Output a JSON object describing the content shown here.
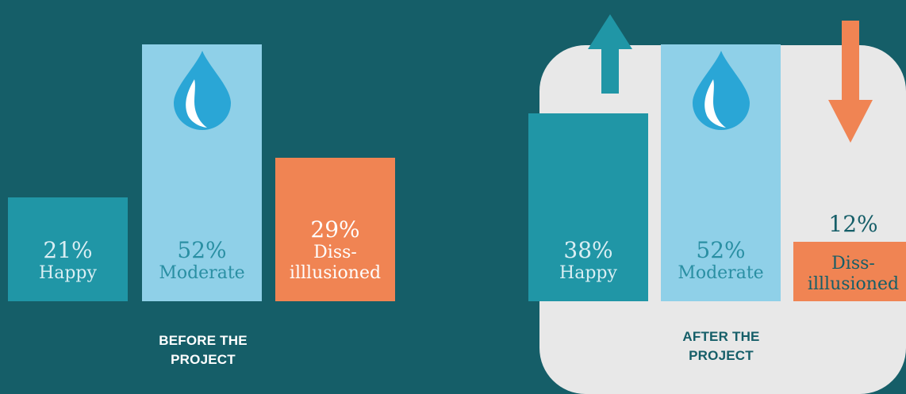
{
  "chart_data": [
    {
      "type": "bar",
      "title": "BEFORE THE\nPROJECT",
      "categories": [
        "Happy",
        "Moderate",
        "Diss-\nilllusioned"
      ],
      "values": [
        21,
        52,
        29
      ],
      "value_labels": [
        "21%",
        "52%",
        "29%"
      ],
      "colors": [
        "#2096a6",
        "#8fd0e8",
        "#f08453"
      ],
      "ylim": [
        0,
        60
      ]
    },
    {
      "type": "bar",
      "title": "AFTER THE\nPROJECT",
      "categories": [
        "Happy",
        "Moderate",
        "Diss-\nilllusioned"
      ],
      "values": [
        38,
        52,
        12
      ],
      "value_labels": [
        "38%",
        "52%",
        "12%"
      ],
      "colors": [
        "#2096a6",
        "#8fd0e8",
        "#f08453"
      ],
      "ylim": [
        0,
        60
      ],
      "annotations": [
        {
          "type": "arrow",
          "direction": "up",
          "category": "Happy",
          "color": "#2096a6"
        },
        {
          "type": "arrow",
          "direction": "down",
          "category": "Diss-\nilllusioned",
          "color": "#f08453"
        }
      ]
    }
  ],
  "icons": [
    "water-drop-icon",
    "water-drop-icon"
  ],
  "colors": {
    "background": "#155e68",
    "panel": "#e8e8e8",
    "drop": "#2aa6d6",
    "text_light": "#d9eef3",
    "text_dark": "#155e68"
  }
}
